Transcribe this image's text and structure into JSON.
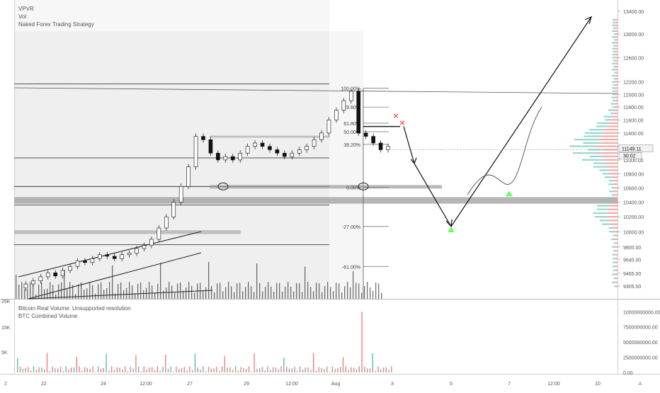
{
  "legend": {
    "top": [
      "VPVR",
      "Vol",
      "Naked Forex Trading Strategy"
    ],
    "bottom": [
      "Bitcoin Real Volume: Unsupported resolution",
      "BTC Combined Volume"
    ]
  },
  "colors": {
    "up": "#26a69a",
    "down": "#ef5350",
    "volume_profile_up": "#80cbc4",
    "volume_profile_down": "#ef9a9a",
    "zone": "#9e9e9e",
    "target_arrow": "#66ff66",
    "sell_marker": "#ff3333"
  },
  "chart_data": [
    {
      "type": "line",
      "name": "main-price-panel",
      "title": "",
      "y_axis_ticks": [
        "13400.00",
        "13000.00",
        "12600.00",
        "12200.00",
        "12000.00",
        "11800.00",
        "11600.00",
        "11400.00",
        "11200.00",
        "11000.00",
        "10800.00",
        "10600.00",
        "10400.00",
        "10200.00",
        "10000.00",
        "9800.00",
        "9640.00",
        "9465.00",
        "9305.00"
      ],
      "y_axis_ticks_scale": "log",
      "ylim": [
        9200,
        13500
      ],
      "x_axis_ticks": [
        "22",
        "24",
        "12:00",
        "27",
        "29",
        "12:00",
        "Aug",
        "3",
        "5",
        "7",
        "12:00",
        "10"
      ],
      "price_badges": [
        "11149.11",
        "30:02"
      ],
      "fib_levels": [
        {
          "label": "100.00%",
          "value": 12100
        },
        {
          "label": "78.60%",
          "value": 11800
        },
        {
          "label": "61.80%",
          "value": 11550
        },
        {
          "label": "50.00%",
          "value": 11420
        },
        {
          "label": "38.20%",
          "value": 11230
        },
        {
          "label": "0.00%",
          "value": 10610
        },
        {
          "label": "-27.00%",
          "value": 10070
        },
        {
          "label": "-61.00%",
          "value": 9550
        }
      ],
      "horizontal_lines": [
        12170,
        11030,
        10620,
        10360,
        9830
      ],
      "zones": [
        {
          "low": 10380,
          "high": 10470
        },
        {
          "low": 9970,
          "high": 10020
        },
        {
          "low": 11330,
          "high": 11360
        }
      ],
      "close_path": [
        9280,
        9330,
        9370,
        9420,
        9470,
        9430,
        9500,
        9550,
        9620,
        9600,
        9650,
        9700,
        9680,
        9650,
        9700,
        9720,
        9780,
        9820,
        9900,
        10050,
        10200,
        10400,
        10620,
        10900,
        11350,
        11300,
        11100,
        11000,
        11050,
        11000,
        11100,
        11200,
        11250,
        11200,
        11150,
        11100,
        11050,
        11100,
        11150,
        11200,
        11300,
        11400,
        11600,
        11750,
        11900,
        12050,
        11400,
        11350,
        11250,
        11150,
        11200
      ],
      "projection_path": [
        11550,
        11350,
        10950,
        10600,
        10070,
        10400,
        10800,
        11400,
        12200,
        13300
      ]
    },
    {
      "type": "bar",
      "name": "btc-combined-volume",
      "title": "BTC Combined Volume",
      "y_axis_ticks_right": [
        "10000000000.00",
        "7500000000.00",
        "5000000000.00",
        "2500000000.00",
        "0.00"
      ],
      "y_axis_ticks_left": [
        "25K",
        "15K",
        "5K"
      ],
      "ylim": [
        0,
        10500000000
      ]
    }
  ]
}
